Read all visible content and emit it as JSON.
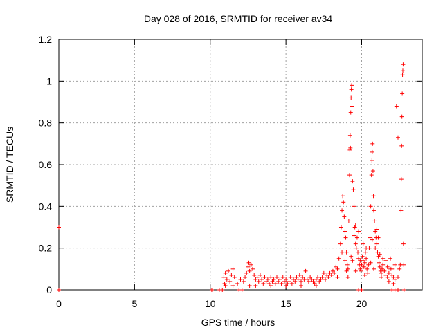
{
  "chart_data": {
    "type": "scatter",
    "title": "Day 028 of 2016, SRMTID for receiver av34",
    "xlabel": "GPS time / hours",
    "ylabel": "SRMTID / TECUs",
    "xlim": [
      0,
      24
    ],
    "ylim": [
      0,
      1.2
    ],
    "xticks": [
      0,
      5,
      10,
      15,
      20
    ],
    "xtick_labels": [
      "0",
      "5",
      "10",
      "15",
      "20"
    ],
    "yticks": [
      0,
      0.2,
      0.4,
      0.6,
      0.8,
      1.0,
      1.2
    ],
    "ytick_labels": [
      "0",
      "0.2",
      "0.4",
      "0.6",
      "0.8",
      "1",
      "1.2"
    ],
    "grid": true,
    "marker": "+",
    "color": "#ff0000",
    "series": [
      {
        "name": "av34",
        "points": [
          [
            0.0,
            0.3
          ],
          [
            0.0,
            0.0
          ],
          [
            10.1,
            0.0
          ],
          [
            10.6,
            0.0
          ],
          [
            10.8,
            0.0
          ],
          [
            11.9,
            0.0
          ],
          [
            12.1,
            0.0
          ],
          [
            19.8,
            0.0
          ],
          [
            20.0,
            0.0
          ],
          [
            22.0,
            0.0
          ],
          [
            22.2,
            0.0
          ],
          [
            22.4,
            0.0
          ],
          [
            22.8,
            0.0
          ],
          [
            10.9,
            0.06
          ],
          [
            10.95,
            0.03
          ],
          [
            11.0,
            0.08
          ],
          [
            11.1,
            0.05
          ],
          [
            11.2,
            0.09
          ],
          [
            11.3,
            0.04
          ],
          [
            11.4,
            0.07
          ],
          [
            11.5,
            0.1
          ],
          [
            11.6,
            0.06
          ],
          [
            11.8,
            0.03
          ],
          [
            12.0,
            0.05
          ],
          [
            12.2,
            0.04
          ],
          [
            12.3,
            0.06
          ],
          [
            12.4,
            0.08
          ],
          [
            12.5,
            0.11
          ],
          [
            12.55,
            0.13
          ],
          [
            12.6,
            0.09
          ],
          [
            12.7,
            0.12
          ],
          [
            12.8,
            0.1
          ],
          [
            12.9,
            0.07
          ],
          [
            13.0,
            0.05
          ],
          [
            13.1,
            0.06
          ],
          [
            13.2,
            0.04
          ],
          [
            13.3,
            0.07
          ],
          [
            13.4,
            0.05
          ],
          [
            13.5,
            0.03
          ],
          [
            13.6,
            0.06
          ],
          [
            13.7,
            0.04
          ],
          [
            13.8,
            0.05
          ],
          [
            13.9,
            0.03
          ],
          [
            14.0,
            0.06
          ],
          [
            14.1,
            0.04
          ],
          [
            14.2,
            0.05
          ],
          [
            14.3,
            0.03
          ],
          [
            14.4,
            0.06
          ],
          [
            14.5,
            0.04
          ],
          [
            14.6,
            0.05
          ],
          [
            14.7,
            0.03
          ],
          [
            14.8,
            0.06
          ],
          [
            14.9,
            0.04
          ],
          [
            15.0,
            0.05
          ],
          [
            15.1,
            0.03
          ],
          [
            15.2,
            0.04
          ],
          [
            15.3,
            0.06
          ],
          [
            15.4,
            0.03
          ],
          [
            15.5,
            0.05
          ],
          [
            15.6,
            0.04
          ],
          [
            15.7,
            0.06
          ],
          [
            15.8,
            0.05
          ],
          [
            15.9,
            0.07
          ],
          [
            16.0,
            0.04
          ],
          [
            16.1,
            0.06
          ],
          [
            16.2,
            0.05
          ],
          [
            16.3,
            0.09
          ],
          [
            16.4,
            0.05
          ],
          [
            16.5,
            0.04
          ],
          [
            16.6,
            0.06
          ],
          [
            16.7,
            0.05
          ],
          [
            16.8,
            0.04
          ],
          [
            16.9,
            0.03
          ],
          [
            17.0,
            0.05
          ],
          [
            17.1,
            0.06
          ],
          [
            17.2,
            0.04
          ],
          [
            17.3,
            0.05
          ],
          [
            17.4,
            0.06
          ],
          [
            17.5,
            0.08
          ],
          [
            17.6,
            0.05
          ],
          [
            17.7,
            0.07
          ],
          [
            17.8,
            0.06
          ],
          [
            17.9,
            0.08
          ],
          [
            18.0,
            0.07
          ],
          [
            18.1,
            0.09
          ],
          [
            18.2,
            0.08
          ],
          [
            18.3,
            0.11
          ],
          [
            18.4,
            0.1
          ],
          [
            18.5,
            0.15
          ],
          [
            18.6,
            0.22
          ],
          [
            18.65,
            0.3
          ],
          [
            18.7,
            0.38
          ],
          [
            18.75,
            0.45
          ],
          [
            18.8,
            0.42
          ],
          [
            18.85,
            0.35
          ],
          [
            18.9,
            0.28
          ],
          [
            18.95,
            0.25
          ],
          [
            19.0,
            0.18
          ],
          [
            19.05,
            0.12
          ],
          [
            19.1,
            0.1
          ],
          [
            19.15,
            0.33
          ],
          [
            19.2,
            0.55
          ],
          [
            19.22,
            0.67
          ],
          [
            19.24,
            0.74
          ],
          [
            19.26,
            0.68
          ],
          [
            19.28,
            0.85
          ],
          [
            19.3,
            0.92
          ],
          [
            19.32,
            0.96
          ],
          [
            19.34,
            0.98
          ],
          [
            19.36,
            0.88
          ],
          [
            19.4,
            0.52
          ],
          [
            19.45,
            0.48
          ],
          [
            19.5,
            0.4
          ],
          [
            19.55,
            0.3
          ],
          [
            19.6,
            0.22
          ],
          [
            19.65,
            0.2
          ],
          [
            19.7,
            0.25
          ],
          [
            19.75,
            0.18
          ],
          [
            19.8,
            0.15
          ],
          [
            19.85,
            0.12
          ],
          [
            19.9,
            0.1
          ],
          [
            19.95,
            0.09
          ],
          [
            20.0,
            0.12
          ],
          [
            20.05,
            0.16
          ],
          [
            20.1,
            0.14
          ],
          [
            20.15,
            0.11
          ],
          [
            20.2,
            0.13
          ],
          [
            20.25,
            0.18
          ],
          [
            20.3,
            0.15
          ],
          [
            20.35,
            0.1
          ],
          [
            20.4,
            0.08
          ],
          [
            20.45,
            0.12
          ],
          [
            20.5,
            0.2
          ],
          [
            20.55,
            0.25
          ],
          [
            20.6,
            0.4
          ],
          [
            20.65,
            0.55
          ],
          [
            20.68,
            0.62
          ],
          [
            20.7,
            0.66
          ],
          [
            20.72,
            0.7
          ],
          [
            20.75,
            0.57
          ],
          [
            20.78,
            0.45
          ],
          [
            20.8,
            0.38
          ],
          [
            20.85,
            0.33
          ],
          [
            20.9,
            0.28
          ],
          [
            20.95,
            0.25
          ],
          [
            21.0,
            0.22
          ],
          [
            21.05,
            0.18
          ],
          [
            21.1,
            0.16
          ],
          [
            21.15,
            0.13
          ],
          [
            21.2,
            0.11
          ],
          [
            21.25,
            0.09
          ],
          [
            21.3,
            0.08
          ],
          [
            21.35,
            0.1
          ],
          [
            21.4,
            0.12
          ],
          [
            21.5,
            0.09
          ],
          [
            21.6,
            0.07
          ],
          [
            21.7,
            0.06
          ],
          [
            21.8,
            0.08
          ],
          [
            21.9,
            0.15
          ],
          [
            22.0,
            0.1
          ],
          [
            22.1,
            0.06
          ],
          [
            22.2,
            0.12
          ],
          [
            22.3,
            0.88
          ],
          [
            22.4,
            0.73
          ],
          [
            22.5,
            0.1
          ],
          [
            22.55,
            0.12
          ],
          [
            22.6,
            0.38
          ],
          [
            22.62,
            0.53
          ],
          [
            22.64,
            0.69
          ],
          [
            22.66,
            0.83
          ],
          [
            22.68,
            0.94
          ],
          [
            22.7,
            1.03
          ],
          [
            22.72,
            1.05
          ],
          [
            22.74,
            1.08
          ],
          [
            22.76,
            0.22
          ],
          [
            22.78,
            0.12
          ],
          [
            19.5,
            0.26
          ],
          [
            19.6,
            0.31
          ],
          [
            19.8,
            0.28
          ],
          [
            20.1,
            0.22
          ],
          [
            20.3,
            0.2
          ],
          [
            20.7,
            0.24
          ],
          [
            20.9,
            0.2
          ],
          [
            21.0,
            0.29
          ],
          [
            21.1,
            0.25
          ],
          [
            21.2,
            0.17
          ],
          [
            21.4,
            0.15
          ],
          [
            21.6,
            0.14
          ],
          [
            21.7,
            0.11
          ],
          [
            21.9,
            0.1
          ],
          [
            22.0,
            0.07
          ],
          [
            22.2,
            0.05
          ],
          [
            19.3,
            0.16
          ],
          [
            19.4,
            0.14
          ],
          [
            19.6,
            0.09
          ],
          [
            19.9,
            0.14
          ],
          [
            20.2,
            0.07
          ],
          [
            20.6,
            0.13
          ],
          [
            20.8,
            0.1
          ],
          [
            21.3,
            0.06
          ],
          [
            21.8,
            0.04
          ],
          [
            22.1,
            0.03
          ],
          [
            22.4,
            0.06
          ],
          [
            18.7,
            0.18
          ],
          [
            18.9,
            0.14
          ],
          [
            19.0,
            0.09
          ],
          [
            19.1,
            0.06
          ],
          [
            18.4,
            0.06
          ],
          [
            12.6,
            0.02
          ],
          [
            13.0,
            0.02
          ],
          [
            14.0,
            0.02
          ],
          [
            15.0,
            0.02
          ],
          [
            16.0,
            0.02
          ],
          [
            17.0,
            0.02
          ],
          [
            11.0,
            0.02
          ],
          [
            11.5,
            0.02
          ]
        ]
      }
    ]
  }
}
